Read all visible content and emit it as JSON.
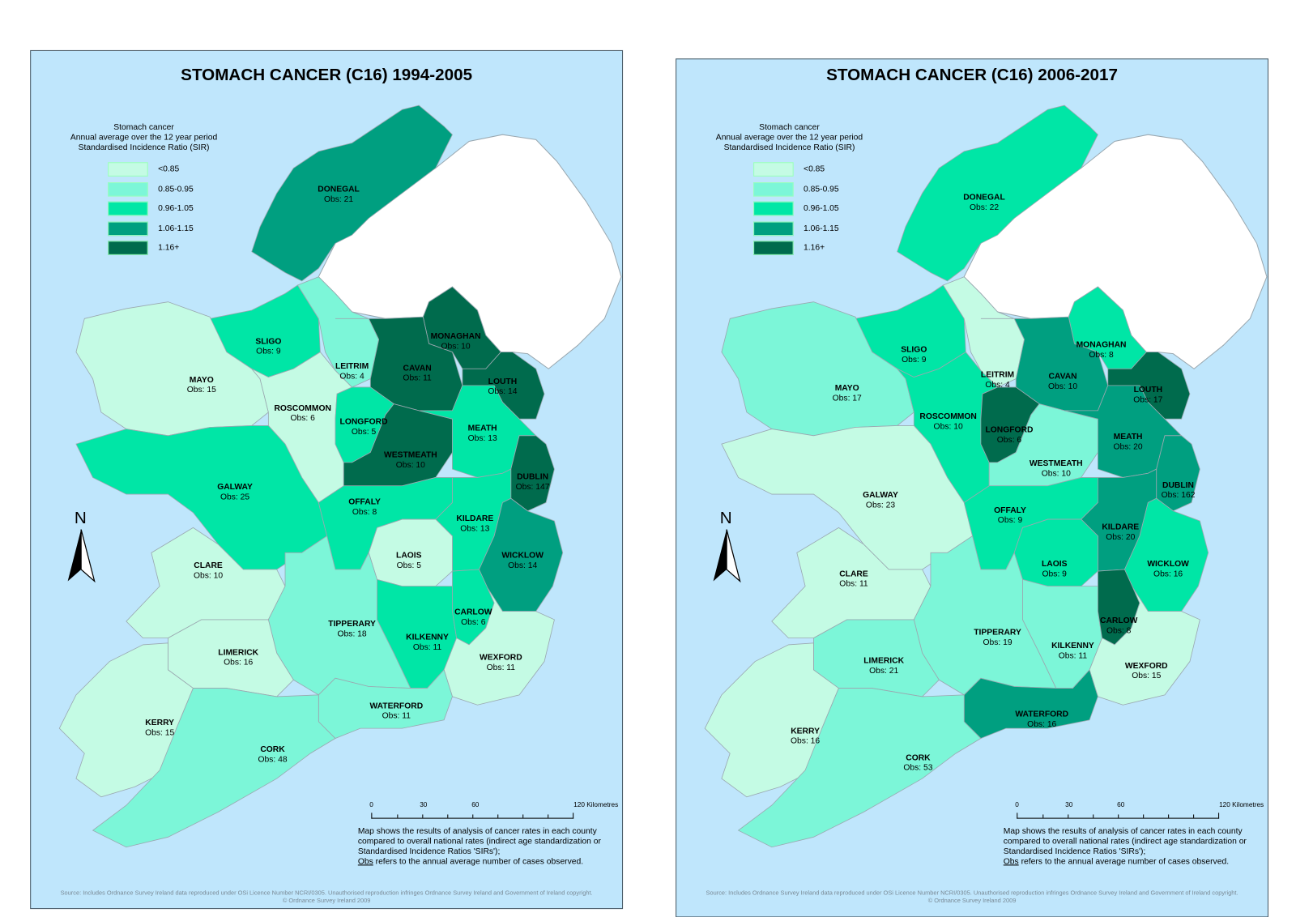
{
  "legend_colors": [
    "#c4fbe4",
    "#7cf6d8",
    "#00e6a6",
    "#009f80",
    "#006b4d"
  ],
  "colors": {
    "sea": "#bfe6fc",
    "northern_ireland": "#ffffff",
    "border": "#9aa8b0"
  },
  "panels": [
    {
      "title": "STOMACH CANCER (C16) 1994-2005",
      "legend": {
        "title_lines": [
          "Stomach cancer",
          "Annual average over the 12 year period",
          "Standardised Incidence Ratio (SIR)"
        ],
        "items": [
          "<0.85",
          "0.85-0.95",
          "0.96-1.05",
          "1.06-1.15",
          "1.16+"
        ]
      },
      "north_label": "N",
      "scale": {
        "labels": [
          "0",
          "30",
          "60",
          "120 Kilometres"
        ]
      },
      "note": {
        "lines": [
          "Map shows the results of analysis of cancer rates in each county",
          "compared to overall national rates (indirect age standardization or",
          "Standardised Incidence Ratios 'SIRs');"
        ],
        "obs_word": "Obs",
        "obs_rest": " refers to the annual average number of cases observed."
      },
      "source": [
        "Source: Includes Ordnance Survey Ireland data reproduced under OSi Licence Number NCRI/0305. Unauthorised reproduction infringes Ordnance Survey Ireland and Government of Ireland copyright.",
        "© Ordnance Survey Ireland 2009"
      ],
      "counties": [
        {
          "name": "DONEGAL",
          "obs": "Obs: 21",
          "sir_class": 3
        },
        {
          "name": "SLIGO",
          "obs": "Obs: 9",
          "sir_class": 2
        },
        {
          "name": "MAYO",
          "obs": "Obs: 15",
          "sir_class": 0
        },
        {
          "name": "ROSCOMMON",
          "obs": "Obs: 6",
          "sir_class": 0
        },
        {
          "name": "LEITRIM",
          "obs": "Obs: 4",
          "sir_class": 1
        },
        {
          "name": "MONAGHAN",
          "obs": "Obs: 10",
          "sir_class": 4
        },
        {
          "name": "CAVAN",
          "obs": "Obs: 11",
          "sir_class": 4
        },
        {
          "name": "LOUTH",
          "obs": "Obs: 14",
          "sir_class": 4
        },
        {
          "name": "LONGFORD",
          "obs": "Obs: 5",
          "sir_class": 2
        },
        {
          "name": "WESTMEATH",
          "obs": "Obs: 10",
          "sir_class": 4
        },
        {
          "name": "MEATH",
          "obs": "Obs: 13",
          "sir_class": 2
        },
        {
          "name": "DUBLIN",
          "obs": "Obs: 147",
          "sir_class": 4
        },
        {
          "name": "GALWAY",
          "obs": "Obs: 25",
          "sir_class": 2
        },
        {
          "name": "OFFALY",
          "obs": "Obs: 8",
          "sir_class": 2
        },
        {
          "name": "KILDARE",
          "obs": "Obs: 13",
          "sir_class": 2
        },
        {
          "name": "LAOIS",
          "obs": "Obs: 5",
          "sir_class": 0
        },
        {
          "name": "WICKLOW",
          "obs": "Obs: 14",
          "sir_class": 3
        },
        {
          "name": "CLARE",
          "obs": "Obs: 10",
          "sir_class": 0
        },
        {
          "name": "TIPPERARY",
          "obs": "Obs: 18",
          "sir_class": 1
        },
        {
          "name": "KILKENNY",
          "obs": "Obs: 11",
          "sir_class": 2
        },
        {
          "name": "CARLOW",
          "obs": "Obs: 6",
          "sir_class": 2
        },
        {
          "name": "WEXFORD",
          "obs": "Obs: 11",
          "sir_class": 0
        },
        {
          "name": "LIMERICK",
          "obs": "Obs: 16",
          "sir_class": 0
        },
        {
          "name": "WATERFORD",
          "obs": "Obs: 11",
          "sir_class": 1
        },
        {
          "name": "KERRY",
          "obs": "Obs: 15",
          "sir_class": 0
        },
        {
          "name": "CORK",
          "obs": "Obs: 48",
          "sir_class": 1
        }
      ]
    },
    {
      "title": "STOMACH CANCER (C16) 2006-2017",
      "legend": {
        "title_lines": [
          "Stomach cancer",
          "Annual average over the 12 year period",
          "Standardised Incidence Ratio (SIR)"
        ],
        "items": [
          "<0.85",
          "0.85-0.95",
          "0.96-1.05",
          "1.06-1.15",
          "1.16+"
        ]
      },
      "north_label": "N",
      "scale": {
        "labels": [
          "0",
          "30",
          "60",
          "120 Kilometres"
        ]
      },
      "note": {
        "lines": [
          "Map shows the results of analysis of cancer rates in each county",
          "compared to overall national rates (indirect age standardization or",
          "Standardised Incidence Ratios 'SIRs');"
        ],
        "obs_word": "Obs",
        "obs_rest": " refers to the annual average number of cases observed."
      },
      "source": [
        "Source: Includes Ordnance Survey Ireland data reproduced under OSi Licence Number NCRI/0305. Unauthorised reproduction infringes Ordnance Survey Ireland and Government of Ireland copyright.",
        "© Ordnance Survey Ireland 2009"
      ],
      "counties": [
        {
          "name": "DONEGAL",
          "obs": "Obs: 22",
          "sir_class": 2
        },
        {
          "name": "SLIGO",
          "obs": "Obs: 9",
          "sir_class": 2
        },
        {
          "name": "MAYO",
          "obs": "Obs: 17",
          "sir_class": 1
        },
        {
          "name": "ROSCOMMON",
          "obs": "Obs: 10",
          "sir_class": 2
        },
        {
          "name": "LEITRIM",
          "obs": "Obs: 4",
          "sir_class": 0
        },
        {
          "name": "MONAGHAN",
          "obs": "Obs: 8",
          "sir_class": 2
        },
        {
          "name": "CAVAN",
          "obs": "Obs: 10",
          "sir_class": 3
        },
        {
          "name": "LOUTH",
          "obs": "Obs: 17",
          "sir_class": 4
        },
        {
          "name": "LONGFORD",
          "obs": "Obs: 6",
          "sir_class": 4
        },
        {
          "name": "WESTMEATH",
          "obs": "Obs: 10",
          "sir_class": 1
        },
        {
          "name": "MEATH",
          "obs": "Obs: 20",
          "sir_class": 3
        },
        {
          "name": "DUBLIN",
          "obs": "Obs: 162",
          "sir_class": 3
        },
        {
          "name": "GALWAY",
          "obs": "Obs: 23",
          "sir_class": 0
        },
        {
          "name": "OFFALY",
          "obs": "Obs: 9",
          "sir_class": 2
        },
        {
          "name": "KILDARE",
          "obs": "Obs: 20",
          "sir_class": 3
        },
        {
          "name": "LAOIS",
          "obs": "Obs: 9",
          "sir_class": 2
        },
        {
          "name": "WICKLOW",
          "obs": "Obs: 16",
          "sir_class": 2
        },
        {
          "name": "CLARE",
          "obs": "Obs: 11",
          "sir_class": 0
        },
        {
          "name": "TIPPERARY",
          "obs": "Obs: 19",
          "sir_class": 1
        },
        {
          "name": "KILKENNY",
          "obs": "Obs: 11",
          "sir_class": 1
        },
        {
          "name": "CARLOW",
          "obs": "Obs: 8",
          "sir_class": 4
        },
        {
          "name": "WEXFORD",
          "obs": "Obs: 15",
          "sir_class": 0
        },
        {
          "name": "LIMERICK",
          "obs": "Obs: 21",
          "sir_class": 1
        },
        {
          "name": "WATERFORD",
          "obs": "Obs: 16",
          "sir_class": 3
        },
        {
          "name": "KERRY",
          "obs": "Obs: 16",
          "sir_class": 0
        },
        {
          "name": "CORK",
          "obs": "Obs: 53",
          "sir_class": 1
        }
      ]
    }
  ]
}
